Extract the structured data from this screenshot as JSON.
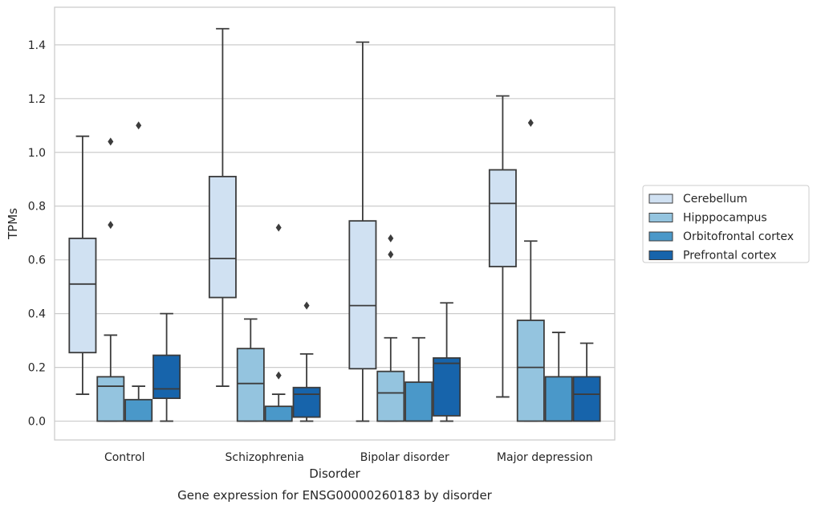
{
  "chart_data": {
    "type": "box",
    "caption": "Gene expression for ENSG00000260183 by disorder",
    "xlabel": "Disorder",
    "ylabel": "TPMs",
    "ylim": [
      -0.07,
      1.54
    ],
    "yticks": [
      0.0,
      0.2,
      0.4,
      0.6,
      0.8,
      1.0,
      1.2,
      1.4
    ],
    "ytick_labels": [
      "0.0",
      "0.2",
      "0.4",
      "0.6",
      "0.8",
      "1.0",
      "1.2",
      "1.4"
    ],
    "grid": "horizontal",
    "legend_placement": "right",
    "categories": [
      "Control",
      "Schizophrenia",
      "Bipolar disorder",
      "Major depression"
    ],
    "series": [
      {
        "name": "Cerebellum",
        "color": "#d0e1f2",
        "boxes": [
          {
            "whisker_low": 0.1,
            "q1": 0.255,
            "median": 0.51,
            "q3": 0.68,
            "whisker_high": 1.06,
            "outliers": []
          },
          {
            "whisker_low": 0.13,
            "q1": 0.46,
            "median": 0.605,
            "q3": 0.91,
            "whisker_high": 1.46,
            "outliers": []
          },
          {
            "whisker_low": 0.0,
            "q1": 0.195,
            "median": 0.43,
            "q3": 0.745,
            "whisker_high": 1.41,
            "outliers": []
          },
          {
            "whisker_low": 0.09,
            "q1": 0.575,
            "median": 0.81,
            "q3": 0.935,
            "whisker_high": 1.21,
            "outliers": []
          }
        ]
      },
      {
        "name": "Hipppocampus",
        "color": "#94c4df",
        "boxes": [
          {
            "whisker_low": 0.0,
            "q1": 0.0,
            "median": 0.13,
            "q3": 0.165,
            "whisker_high": 0.32,
            "outliers": [
              0.73,
              1.04
            ]
          },
          {
            "whisker_low": 0.0,
            "q1": 0.0,
            "median": 0.14,
            "q3": 0.27,
            "whisker_high": 0.38,
            "outliers": []
          },
          {
            "whisker_low": 0.0,
            "q1": 0.0,
            "median": 0.105,
            "q3": 0.185,
            "whisker_high": 0.31,
            "outliers": [
              0.62,
              0.68
            ]
          },
          {
            "whisker_low": 0.0,
            "q1": 0.0,
            "median": 0.2,
            "q3": 0.375,
            "whisker_high": 0.67,
            "outliers": [
              1.11
            ]
          }
        ]
      },
      {
        "name": "Orbitofrontal cortex",
        "color": "#4a98c9",
        "boxes": [
          {
            "whisker_low": 0.0,
            "q1": 0.0,
            "median": 0.0,
            "q3": 0.08,
            "whisker_high": 0.13,
            "outliers": [
              1.1
            ]
          },
          {
            "whisker_low": 0.0,
            "q1": 0.0,
            "median": 0.0,
            "q3": 0.055,
            "whisker_high": 0.1,
            "outliers": [
              0.17,
              0.72
            ]
          },
          {
            "whisker_low": 0.0,
            "q1": 0.0,
            "median": 0.0,
            "q3": 0.145,
            "whisker_high": 0.31,
            "outliers": []
          },
          {
            "whisker_low": 0.0,
            "q1": 0.0,
            "median": 0.0,
            "q3": 0.165,
            "whisker_high": 0.33,
            "outliers": []
          }
        ]
      },
      {
        "name": "Prefrontal cortex",
        "color": "#1764ab",
        "boxes": [
          {
            "whisker_low": 0.0,
            "q1": 0.085,
            "median": 0.12,
            "q3": 0.245,
            "whisker_high": 0.4,
            "outliers": []
          },
          {
            "whisker_low": 0.0,
            "q1": 0.015,
            "median": 0.1,
            "q3": 0.125,
            "whisker_high": 0.25,
            "outliers": [
              0.43
            ]
          },
          {
            "whisker_low": 0.0,
            "q1": 0.02,
            "median": 0.215,
            "q3": 0.235,
            "whisker_high": 0.44,
            "outliers": []
          },
          {
            "whisker_low": 0.0,
            "q1": 0.0,
            "median": 0.1,
            "q3": 0.165,
            "whisker_high": 0.29,
            "outliers": []
          }
        ]
      }
    ]
  }
}
